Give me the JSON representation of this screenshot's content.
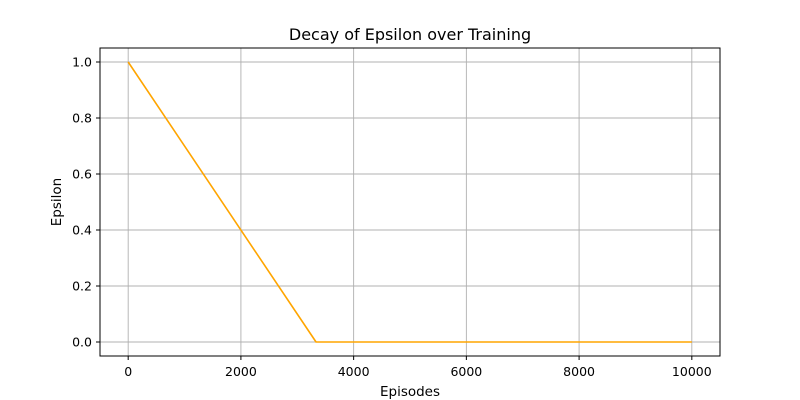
{
  "chart_data": {
    "type": "line",
    "title": "Decay of Epsilon over Training",
    "xlabel": "Episodes",
    "ylabel": "Epsilon",
    "xlim": [
      -500,
      10500
    ],
    "ylim": [
      -0.05,
      1.05
    ],
    "xticks": [
      0,
      2000,
      4000,
      6000,
      8000,
      10000
    ],
    "yticks": [
      0.0,
      0.2,
      0.4,
      0.6,
      0.8,
      1.0
    ],
    "xtick_labels": [
      "0",
      "2000",
      "4000",
      "6000",
      "8000",
      "10000"
    ],
    "ytick_labels": [
      "0.0",
      "0.2",
      "0.4",
      "0.6",
      "0.8",
      "1.0"
    ],
    "grid": true,
    "series": [
      {
        "color": "#ffa500",
        "x": [
          0,
          3333,
          10000
        ],
        "y": [
          1.0,
          0.0,
          0.0
        ]
      }
    ]
  }
}
